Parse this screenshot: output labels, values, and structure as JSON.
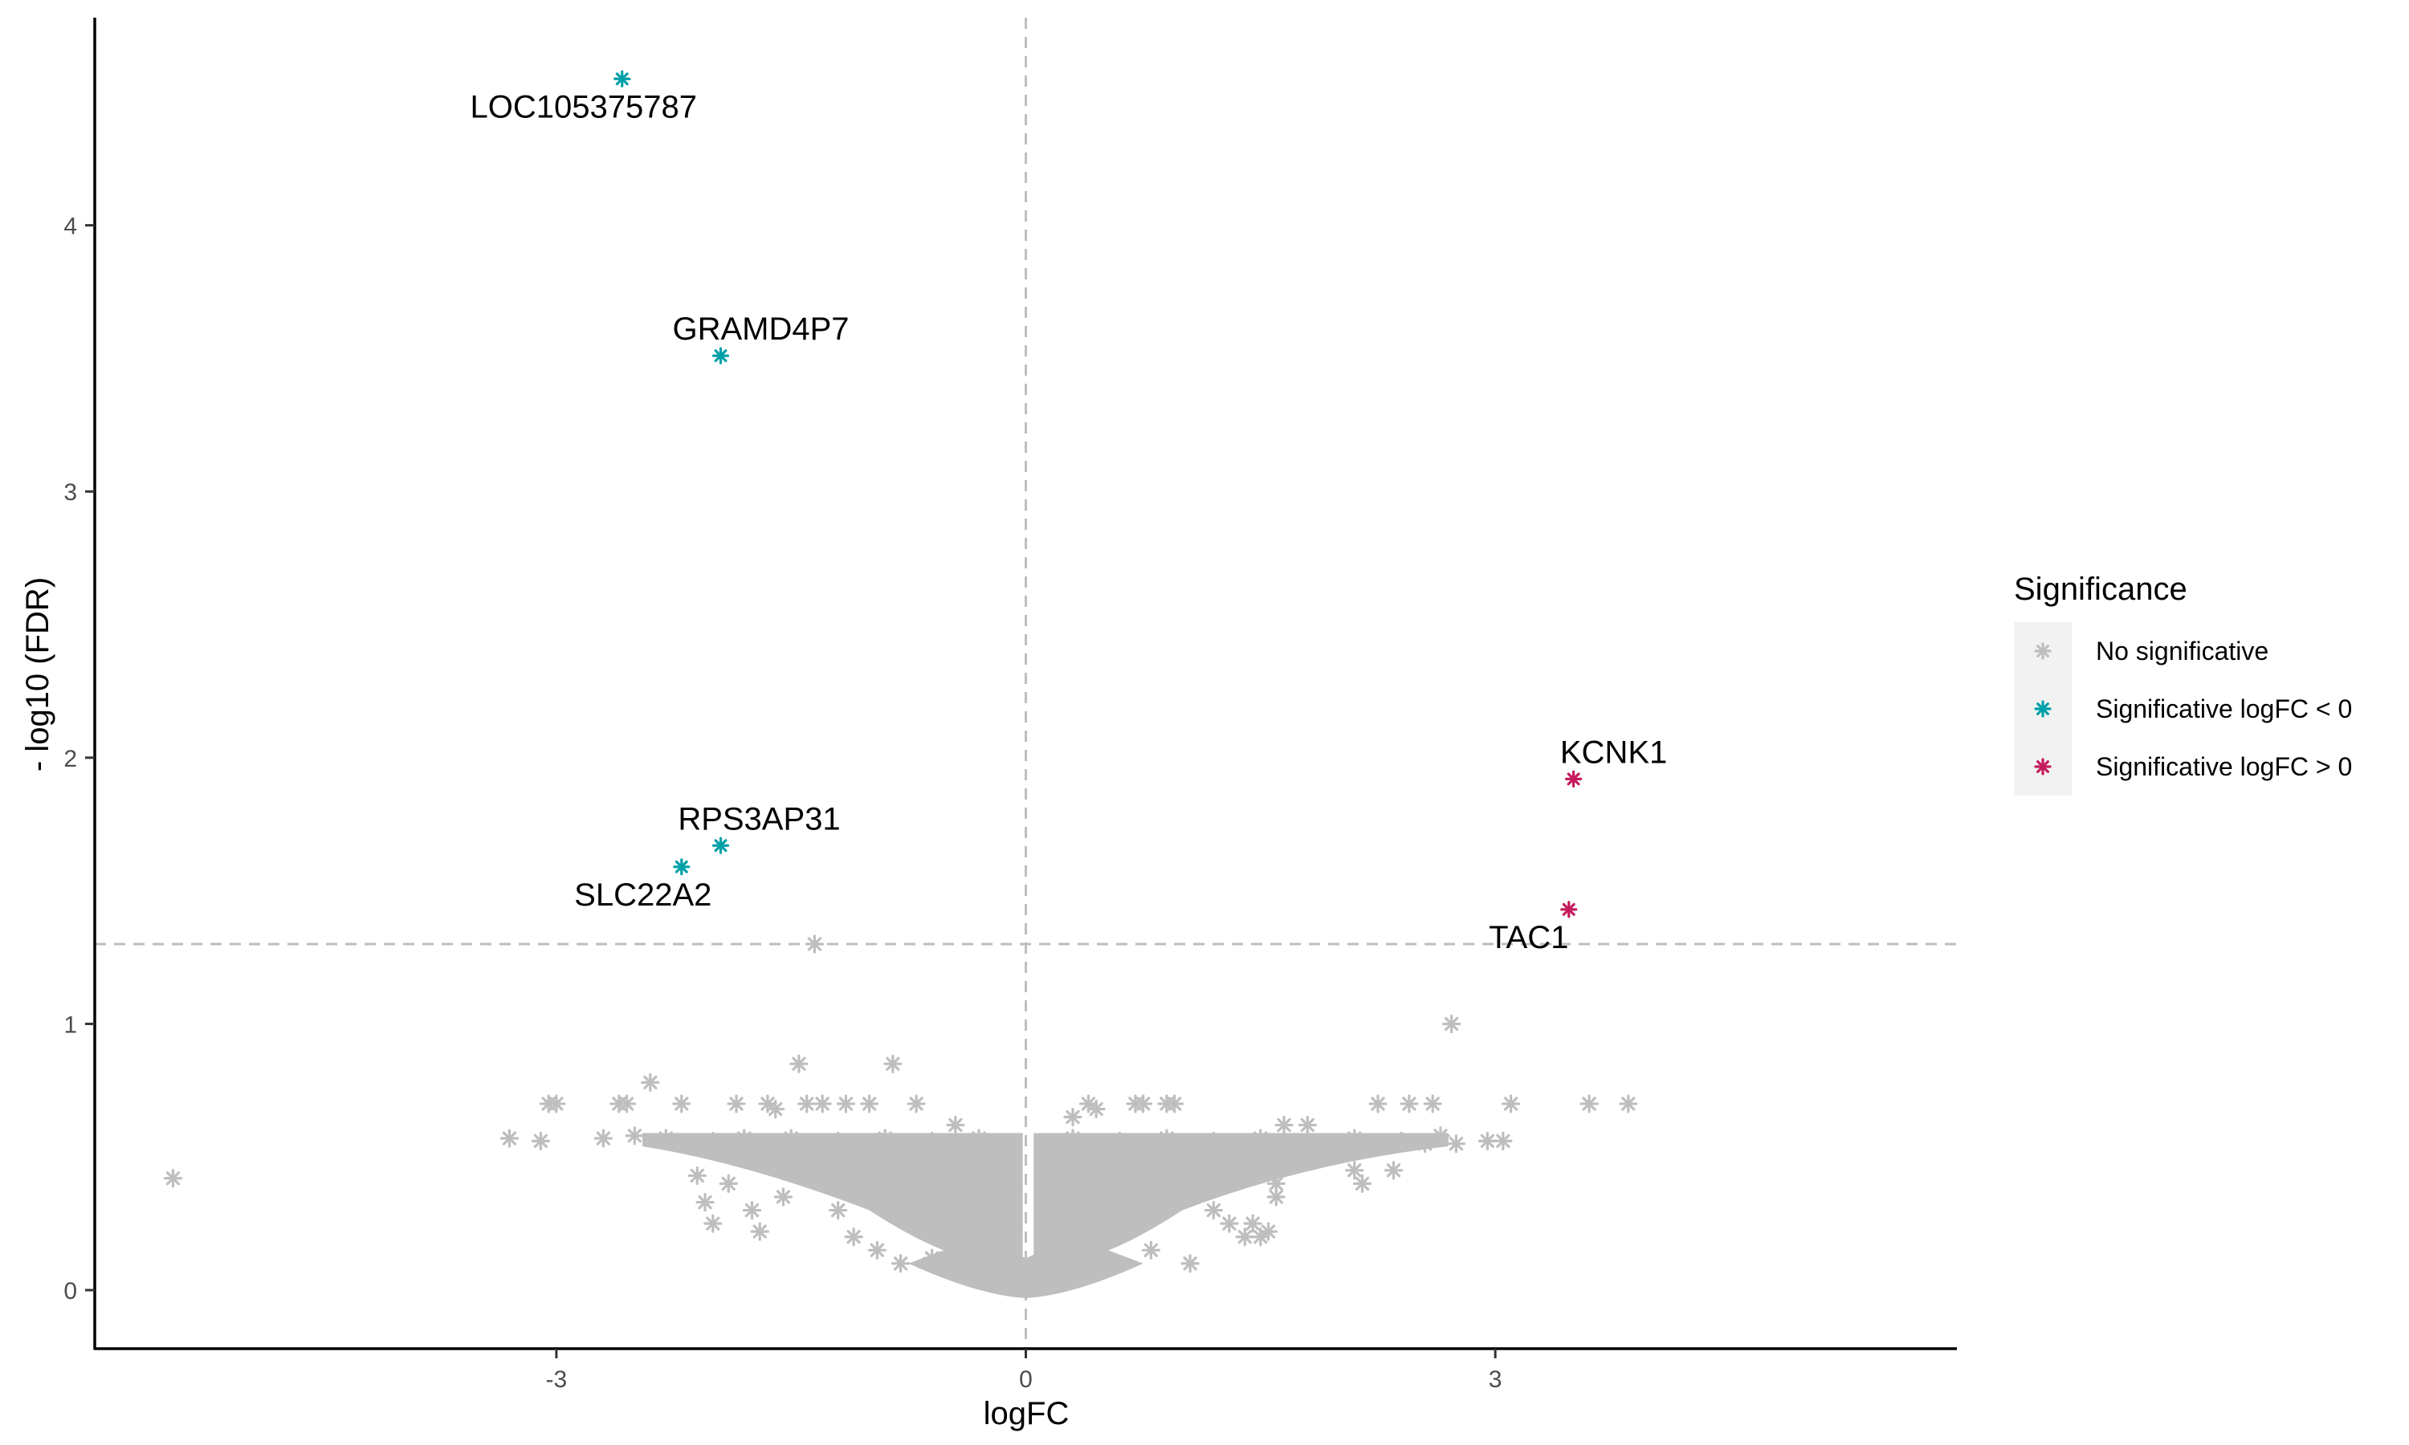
{
  "chart_data": {
    "type": "scatter",
    "xlabel": "logFC",
    "ylabel": "- log10 (FDR)",
    "xlim": [
      -5.95,
      5.95
    ],
    "ylim": [
      -0.22,
      4.78
    ],
    "x_ticks": [
      -3,
      0,
      3
    ],
    "x_tick_labels": [
      "-3",
      "0",
      "3"
    ],
    "y_ticks": [
      0,
      1,
      2,
      3,
      4
    ],
    "y_tick_labels": [
      "0",
      "1",
      "2",
      "3",
      "4"
    ],
    "grid": false,
    "marker": "asterisk",
    "reference_lines": {
      "vertical_x": 0,
      "horizontal_y": 1.3,
      "style": "dashed",
      "color": "#bebebe"
    },
    "legend": {
      "title": "Significance",
      "placement": "right",
      "entries": [
        {
          "label": "No significative",
          "color": "#bebebe"
        },
        {
          "label": "Significative logFC < 0",
          "color": "#00a0a8"
        },
        {
          "label": "Significative logFC > 0",
          "color": "#c51b5d"
        }
      ]
    },
    "series": [
      {
        "name": "No significative",
        "color": "#bebebe",
        "points": [
          [
            -5.45,
            0.42
          ],
          [
            -3.3,
            0.57
          ],
          [
            -3.1,
            0.56
          ],
          [
            -3.05,
            0.7
          ],
          [
            -3.0,
            0.7
          ],
          [
            -2.6,
            0.7
          ],
          [
            -2.55,
            0.7
          ],
          [
            -2.4,
            0.78
          ],
          [
            -2.2,
            0.7
          ],
          [
            -2.1,
            0.43
          ],
          [
            -2.05,
            0.33
          ],
          [
            -2.0,
            0.25
          ],
          [
            -1.9,
            0.4
          ],
          [
            -1.85,
            0.7
          ],
          [
            -1.75,
            0.3
          ],
          [
            -1.7,
            0.22
          ],
          [
            -1.65,
            0.7
          ],
          [
            -1.6,
            0.68
          ],
          [
            -1.55,
            0.35
          ],
          [
            -1.45,
            0.85
          ],
          [
            -1.4,
            0.7
          ],
          [
            -1.35,
            1.3
          ],
          [
            -1.3,
            0.7
          ],
          [
            -1.25,
            0.4
          ],
          [
            -1.2,
            0.3
          ],
          [
            -1.15,
            0.7
          ],
          [
            -1.1,
            0.2
          ],
          [
            -1.0,
            0.7
          ],
          [
            -0.95,
            0.15
          ],
          [
            -0.85,
            0.85
          ],
          [
            -0.8,
            0.1
          ],
          [
            -0.7,
            0.7
          ],
          [
            -0.6,
            0.12
          ],
          [
            -0.45,
            0.62
          ],
          [
            0.3,
            0.65
          ],
          [
            0.4,
            0.7
          ],
          [
            0.45,
            0.68
          ],
          [
            0.55,
            0.1
          ],
          [
            0.7,
            0.7
          ],
          [
            0.75,
            0.7
          ],
          [
            0.8,
            0.15
          ],
          [
            0.9,
            0.7
          ],
          [
            0.95,
            0.7
          ],
          [
            1.05,
            0.1
          ],
          [
            1.2,
            0.3
          ],
          [
            1.3,
            0.25
          ],
          [
            1.4,
            0.2
          ],
          [
            1.55,
            0.45
          ],
          [
            1.6,
            0.4
          ],
          [
            1.65,
            0.62
          ],
          [
            1.75,
            0.55
          ],
          [
            1.8,
            0.62
          ],
          [
            1.6,
            0.35
          ],
          [
            1.55,
            0.22
          ],
          [
            1.45,
            0.25
          ],
          [
            1.5,
            0.2
          ],
          [
            2.1,
            0.45
          ],
          [
            2.15,
            0.4
          ],
          [
            2.25,
            0.7
          ],
          [
            2.3,
            0.55
          ],
          [
            2.35,
            0.45
          ],
          [
            2.45,
            0.7
          ],
          [
            2.55,
            0.55
          ],
          [
            2.6,
            0.7
          ],
          [
            2.65,
            0.58
          ],
          [
            2.72,
            1.0
          ],
          [
            2.75,
            0.55
          ],
          [
            2.95,
            0.56
          ],
          [
            3.05,
            0.56
          ],
          [
            3.1,
            0.7
          ],
          [
            3.6,
            0.7
          ],
          [
            3.85,
            0.7
          ],
          [
            -2.7,
            0.57
          ],
          [
            -2.5,
            0.58
          ],
          [
            -2.3,
            0.57
          ],
          [
            -2.0,
            0.56
          ],
          [
            -1.8,
            0.57
          ],
          [
            -1.5,
            0.57
          ],
          [
            -1.2,
            0.56
          ],
          [
            -0.9,
            0.57
          ],
          [
            -0.6,
            0.56
          ],
          [
            -0.3,
            0.57
          ],
          [
            0.3,
            0.57
          ],
          [
            0.6,
            0.56
          ],
          [
            0.9,
            0.57
          ],
          [
            1.2,
            0.56
          ],
          [
            1.5,
            0.57
          ],
          [
            1.8,
            0.56
          ],
          [
            2.1,
            0.57
          ],
          [
            2.4,
            0.56
          ],
          [
            -0.5,
            0.45
          ],
          [
            -0.4,
            0.35
          ],
          [
            -0.3,
            0.25
          ],
          [
            -0.2,
            0.15
          ],
          [
            -0.1,
            0.08
          ],
          [
            0.1,
            0.08
          ],
          [
            0.2,
            0.15
          ],
          [
            0.3,
            0.28
          ],
          [
            0.4,
            0.36
          ],
          [
            0.5,
            0.45
          ],
          [
            -1.0,
            0.45
          ],
          [
            -0.8,
            0.3
          ],
          [
            0.8,
            0.35
          ],
          [
            1.0,
            0.45
          ],
          [
            -0.05,
            0.02
          ],
          [
            0.05,
            0.02
          ],
          [
            0.0,
            0.0
          ]
        ]
      },
      {
        "name": "Significative logFC < 0",
        "color": "#00a0a8",
        "points": [
          {
            "x": -2.58,
            "y": 4.55,
            "label": "LOC105375787"
          },
          {
            "x": -1.95,
            "y": 3.51,
            "label": "GRAMD4P7"
          },
          {
            "x": -1.95,
            "y": 1.67,
            "label": "RPS3AP31"
          },
          {
            "x": -2.2,
            "y": 1.59,
            "label": "SLC22A2"
          }
        ]
      },
      {
        "name": "Significative logFC > 0",
        "color": "#c51b5d",
        "points": [
          {
            "x": 3.5,
            "y": 1.92,
            "label": "KCNK1"
          },
          {
            "x": 3.47,
            "y": 1.43,
            "label": "TAC1"
          }
        ]
      }
    ]
  }
}
